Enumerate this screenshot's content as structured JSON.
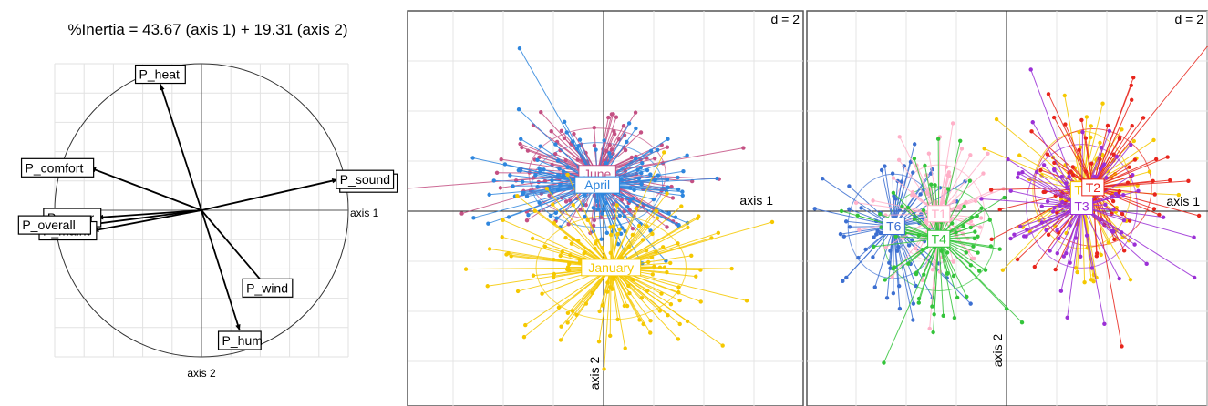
{
  "chart_data": [
    {
      "type": "correlation-circle",
      "title": "%Inertia = 43.67 (axis 1) + 19.31 (axis 2)",
      "xlabel": "axis 1",
      "ylabel": "axis 2",
      "xlim": [
        -1,
        1
      ],
      "ylim": [
        -1,
        1
      ],
      "grid": true,
      "variables": [
        {
          "name": "P_heat",
          "x": -0.28,
          "y": 0.86
        },
        {
          "name": "P_comfort",
          "x": -0.76,
          "y": 0.29
        },
        {
          "name": "P_sound",
          "x": 0.93,
          "y": 0.21
        },
        {
          "name": "P_secur",
          "x": -0.71,
          "y": -0.05
        },
        {
          "name": "P_maint",
          "x": -0.74,
          "y": -0.14
        },
        {
          "name": "P_overall",
          "x": -0.78,
          "y": -0.1
        },
        {
          "name": "P_wind",
          "x": 0.45,
          "y": -0.53
        },
        {
          "name": "P_hum",
          "x": 0.26,
          "y": -0.82
        }
      ]
    },
    {
      "type": "scatter",
      "title": "d = 2",
      "xlabel": "axis 1",
      "ylabel": "axis 2",
      "grid": true,
      "legend": "group labels at centroids",
      "groups": [
        {
          "name": "June",
          "color": "#c45083",
          "cx": -0.25,
          "cy": 1.5,
          "sx": 2.1,
          "sy": 1.4
        },
        {
          "name": "April",
          "color": "#2e86de",
          "cx": -0.25,
          "cy": 1.05,
          "sx": 2.0,
          "sy": 1.3
        },
        {
          "name": "January",
          "color": "#f5c800",
          "cx": 0.3,
          "cy": -2.25,
          "sx": 2.3,
          "sy": 1.6
        }
      ]
    },
    {
      "type": "scatter",
      "title": "d = 2",
      "xlabel": "axis 1",
      "ylabel": "axis 2",
      "grid": true,
      "legend": "group labels at centroids",
      "groups": [
        {
          "name": "T6",
          "color": "#3c6fd1",
          "cx": -4.5,
          "cy": -0.6,
          "sx": 1.4,
          "sy": 1.6
        },
        {
          "name": "T1",
          "color": "#ffb0c8",
          "cx": -2.7,
          "cy": -0.1,
          "sx": 1.4,
          "sy": 1.5
        },
        {
          "name": "T4",
          "color": "#33c43a",
          "cx": -2.7,
          "cy": -1.1,
          "sx": 1.7,
          "sy": 1.6
        },
        {
          "name": "T5",
          "color": "#f5c800",
          "cx": 3.0,
          "cy": 0.85,
          "sx": 1.5,
          "sy": 1.8
        },
        {
          "name": "T2",
          "color": "#e8251c",
          "cx": 3.45,
          "cy": 0.95,
          "sx": 1.8,
          "sy": 1.8
        },
        {
          "name": "T3",
          "color": "#9b2fd6",
          "cx": 3.0,
          "cy": 0.2,
          "sx": 1.7,
          "sy": 1.9
        }
      ]
    }
  ]
}
